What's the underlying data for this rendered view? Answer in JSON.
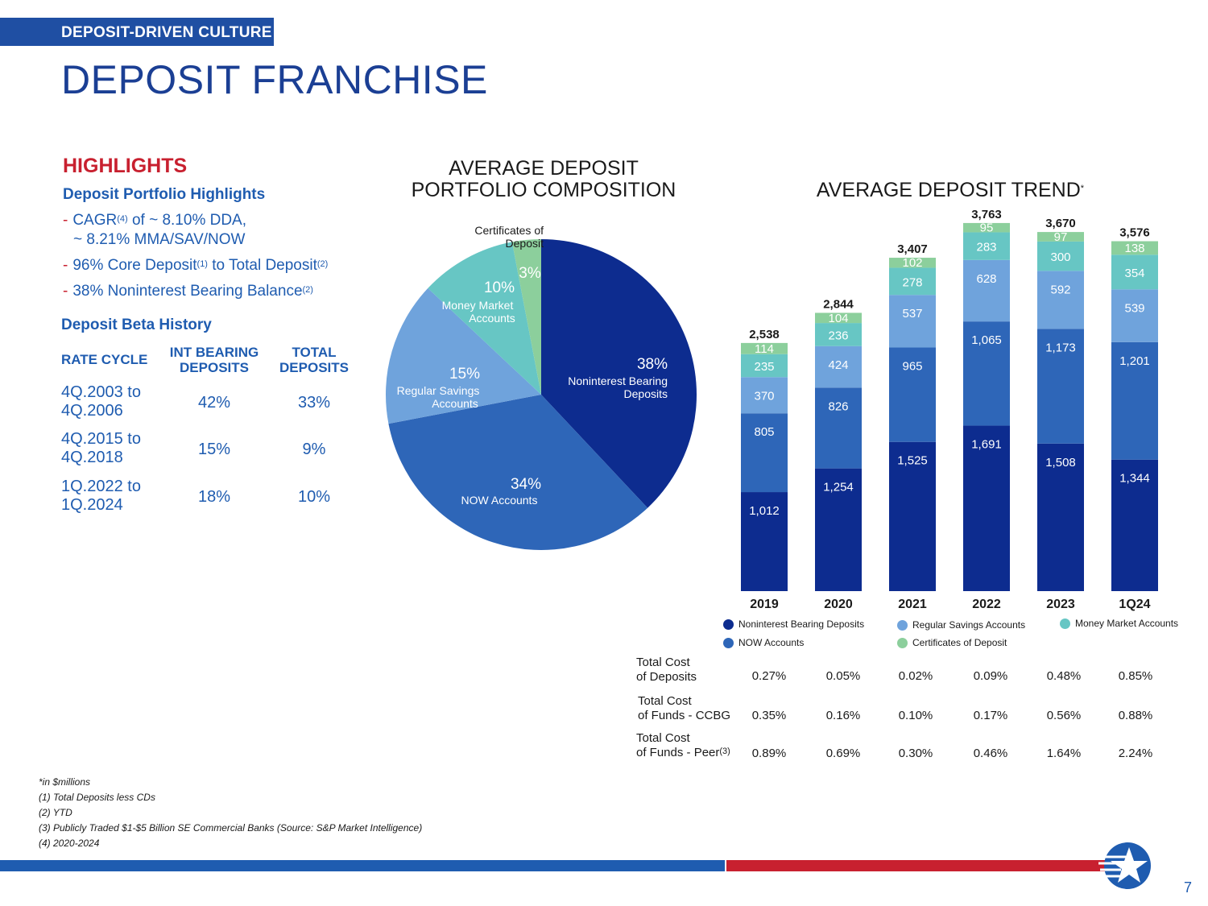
{
  "header": {
    "section_tag": "DEPOSIT-DRIVEN CULTURE",
    "page_title": "DEPOSIT FRANCHISE"
  },
  "highlights": {
    "title": "HIGHLIGHTS",
    "portfolio_heading": "Deposit Portfolio Highlights",
    "bullets": [
      {
        "line1": "CAGR",
        "sup1": "(4)",
        "rest1": " of ~ 8.10% DDA,",
        "line2": "~ 8.21% MMA/SAV/NOW"
      },
      {
        "line1": "96% Core Deposit",
        "sup1": "(1)",
        "rest1": " to Total Deposit",
        "sup2": "(2)"
      },
      {
        "line1": "38% Noninterest Bearing Balance",
        "sup1": "(2)"
      }
    ],
    "beta_heading": "Deposit Beta History",
    "beta_columns": [
      "RATE CYCLE",
      "INT BEARING DEPOSITS",
      "TOTAL DEPOSITS"
    ],
    "beta_rows": [
      {
        "cycle_a": "4Q.2003 to",
        "cycle_b": "4Q.2006",
        "int": "42%",
        "total": "33%"
      },
      {
        "cycle_a": "4Q.2015 to",
        "cycle_b": "4Q.2018",
        "int": "15%",
        "total": "9%"
      },
      {
        "cycle_a": "1Q.2022 to",
        "cycle_b": "1Q.2024",
        "int": "18%",
        "total": "10%"
      }
    ]
  },
  "pie_title_line1": "AVERAGE DEPOSIT",
  "pie_title_line2": "PORTFOLIO COMPOSITION",
  "bar_title": "AVERAGE DEPOSIT TREND",
  "bar_title_sup": "*",
  "colors": {
    "noninterest": "#0d2c8f",
    "now": "#2e66b8",
    "savings": "#6fa3dc",
    "money_market": "#67c6c4",
    "cds": "#8ccf9c",
    "brand_blue": "#1f5cb0",
    "brand_red": "#c8202f"
  },
  "chart_data": [
    {
      "type": "pie",
      "slices": [
        {
          "name": "Noninterest Bearing Deposits",
          "pct_label": "38%",
          "value": 38,
          "color_key": "noninterest"
        },
        {
          "name": "NOW Accounts",
          "pct_label": "34%",
          "value": 34,
          "color_key": "now"
        },
        {
          "name": "Regular Savings Accounts",
          "pct_label": "15%",
          "value": 15,
          "color_key": "savings"
        },
        {
          "name": "Money Market Accounts",
          "pct_label": "10%",
          "value": 10,
          "color_key": "money_market"
        },
        {
          "name": "Certificates of Deposit",
          "pct_label": "3%",
          "value": 3,
          "color_key": "cds"
        }
      ]
    },
    {
      "type": "bar",
      "stacked": true,
      "categories": [
        "2019",
        "2020",
        "2021",
        "2022",
        "2023",
        "1Q24"
      ],
      "totals": [
        "2,538",
        "2,844",
        "3,407",
        "3,763",
        "3,670",
        "3,576"
      ],
      "series": [
        {
          "name": "Noninterest Bearing Deposits",
          "color_key": "noninterest",
          "values": [
            1012,
            1254,
            1525,
            1691,
            1508,
            1344
          ]
        },
        {
          "name": "NOW Accounts",
          "color_key": "now",
          "values": [
            805,
            826,
            965,
            1065,
            1173,
            1201
          ]
        },
        {
          "name": "Regular Savings Accounts",
          "color_key": "savings",
          "values": [
            370,
            424,
            537,
            628,
            592,
            539
          ]
        },
        {
          "name": "Money Market Accounts",
          "color_key": "money_market",
          "values": [
            235,
            236,
            278,
            283,
            300,
            354
          ]
        },
        {
          "name": "Certificates of Deposit",
          "color_key": "cds",
          "values": [
            114,
            104,
            102,
            95,
            97,
            138
          ]
        }
      ],
      "ylim": [
        0,
        3800
      ]
    }
  ],
  "legend": [
    {
      "label": "Noninterest Bearing Deposits",
      "color_key": "noninterest"
    },
    {
      "label": "Regular Savings Accounts",
      "color_key": "savings"
    },
    {
      "label": "Money Market Accounts",
      "color_key": "money_market"
    },
    {
      "label": "NOW Accounts",
      "color_key": "now"
    },
    {
      "label": "Certificates of Deposit",
      "color_key": "cds"
    }
  ],
  "cost_table": [
    {
      "label1": "Total Cost",
      "label2": "of Deposits",
      "sup": "",
      "values": [
        "0.27%",
        "0.05%",
        "0.02%",
        "0.09%",
        "0.48%",
        "0.85%"
      ]
    },
    {
      "label1": "Total Cost",
      "label2": "of Funds - CCBG",
      "sup": "",
      "values": [
        "0.35%",
        "0.16%",
        "0.10%",
        "0.17%",
        "0.56%",
        "0.88%"
      ]
    },
    {
      "label1": "Total Cost",
      "label2": "of Funds - Peer",
      "sup": "(3)",
      "values": [
        "0.89%",
        "0.69%",
        "0.30%",
        "0.46%",
        "1.64%",
        "2.24%"
      ]
    }
  ],
  "footnotes": [
    "*in $millions",
    "(1) Total Deposits less CDs",
    "(2) YTD",
    "(3) Publicly Traded $1-$5 Billion SE Commercial Banks (Source: S&P Market Intelligence)",
    "(4) 2020-2024"
  ],
  "page_number": "7"
}
